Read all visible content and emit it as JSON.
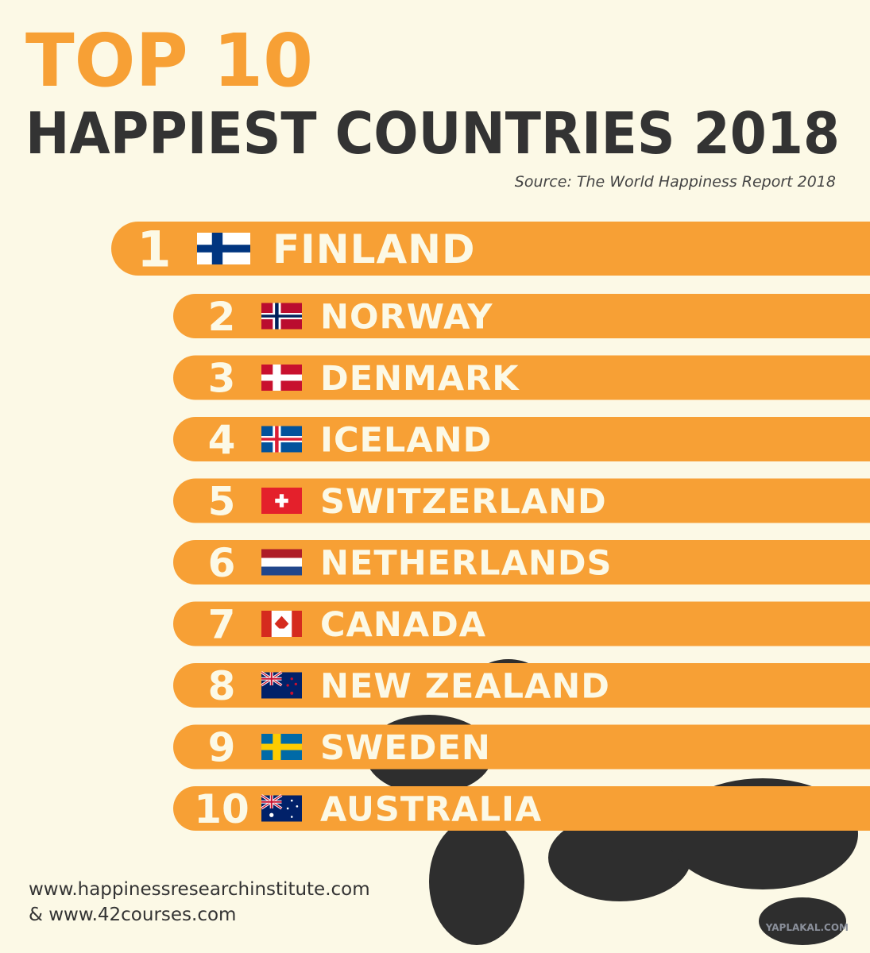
{
  "header": {
    "title": "TOP 10",
    "subtitle": "HAPPIEST COUNTRIES 2018",
    "source": "Source: The World Happiness Report 2018"
  },
  "ranking": [
    {
      "rank": 1,
      "country": "FINLAND"
    },
    {
      "rank": 2,
      "country": "NORWAY"
    },
    {
      "rank": 3,
      "country": "DENMARK"
    },
    {
      "rank": 4,
      "country": "ICELAND"
    },
    {
      "rank": 5,
      "country": "SWITZERLAND"
    },
    {
      "rank": 6,
      "country": "NETHERLANDS"
    },
    {
      "rank": 7,
      "country": "CANADA"
    },
    {
      "rank": 8,
      "country": "NEW ZEALAND"
    },
    {
      "rank": 9,
      "country": "SWEDEN"
    },
    {
      "rank": 10,
      "country": "AUSTRALIA"
    }
  ],
  "footer": {
    "line1": "www.happinessresearchinstitute.com",
    "line2": "& www.42courses.com",
    "watermark": "YAPLAKAL.COM"
  }
}
